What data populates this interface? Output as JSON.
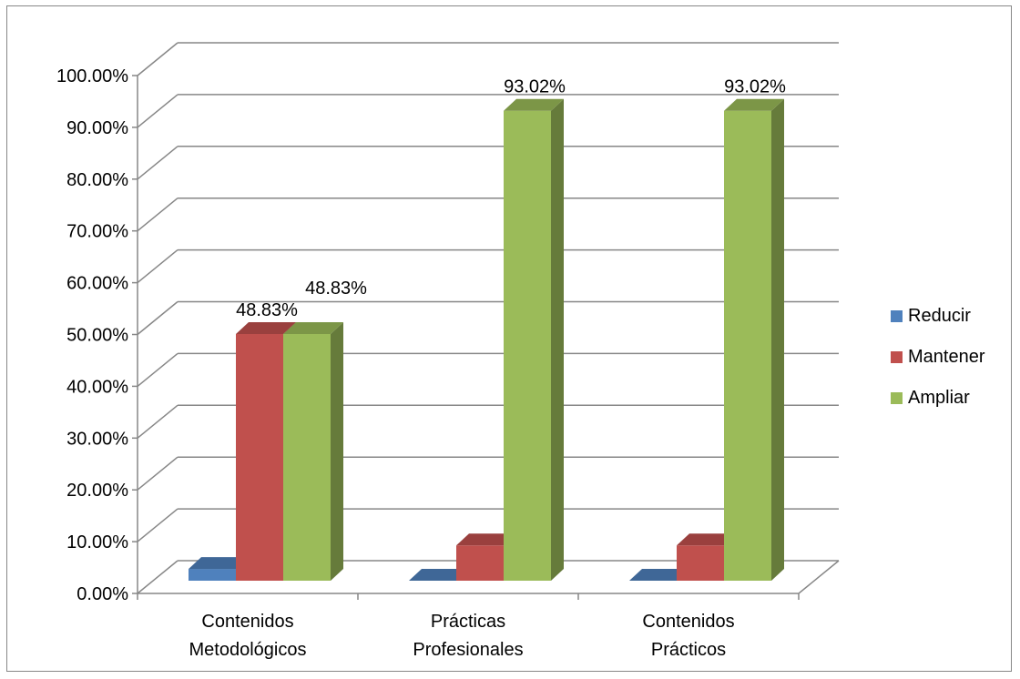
{
  "chart_data": {
    "type": "bar",
    "title": "",
    "xlabel": "",
    "ylabel": "",
    "ylim": [
      0,
      100
    ],
    "y_tick_step": 10,
    "y_tick_format": "percent_2dp",
    "grid": true,
    "three_d": true,
    "legend_position": "right",
    "categories": [
      [
        "Contenidos",
        "Metodológicos"
      ],
      [
        "Prácticas",
        "Profesionales"
      ],
      [
        "Contenidos",
        "Prácticos"
      ]
    ],
    "series": [
      {
        "name": "Reducir",
        "color": "#4F81BD",
        "values": [
          2.33,
          0,
          0
        ],
        "data_labels": [
          "",
          "",
          ""
        ]
      },
      {
        "name": "Mantener",
        "color": "#C0504D",
        "values": [
          48.83,
          6.98,
          6.98
        ],
        "data_labels": [
          "48.83%",
          "",
          ""
        ]
      },
      {
        "name": "Ampliar",
        "color": "#9BBB59",
        "values": [
          48.83,
          93.02,
          93.02
        ],
        "data_labels": [
          "48.83%",
          "93.02%",
          "93.02%"
        ]
      }
    ]
  }
}
